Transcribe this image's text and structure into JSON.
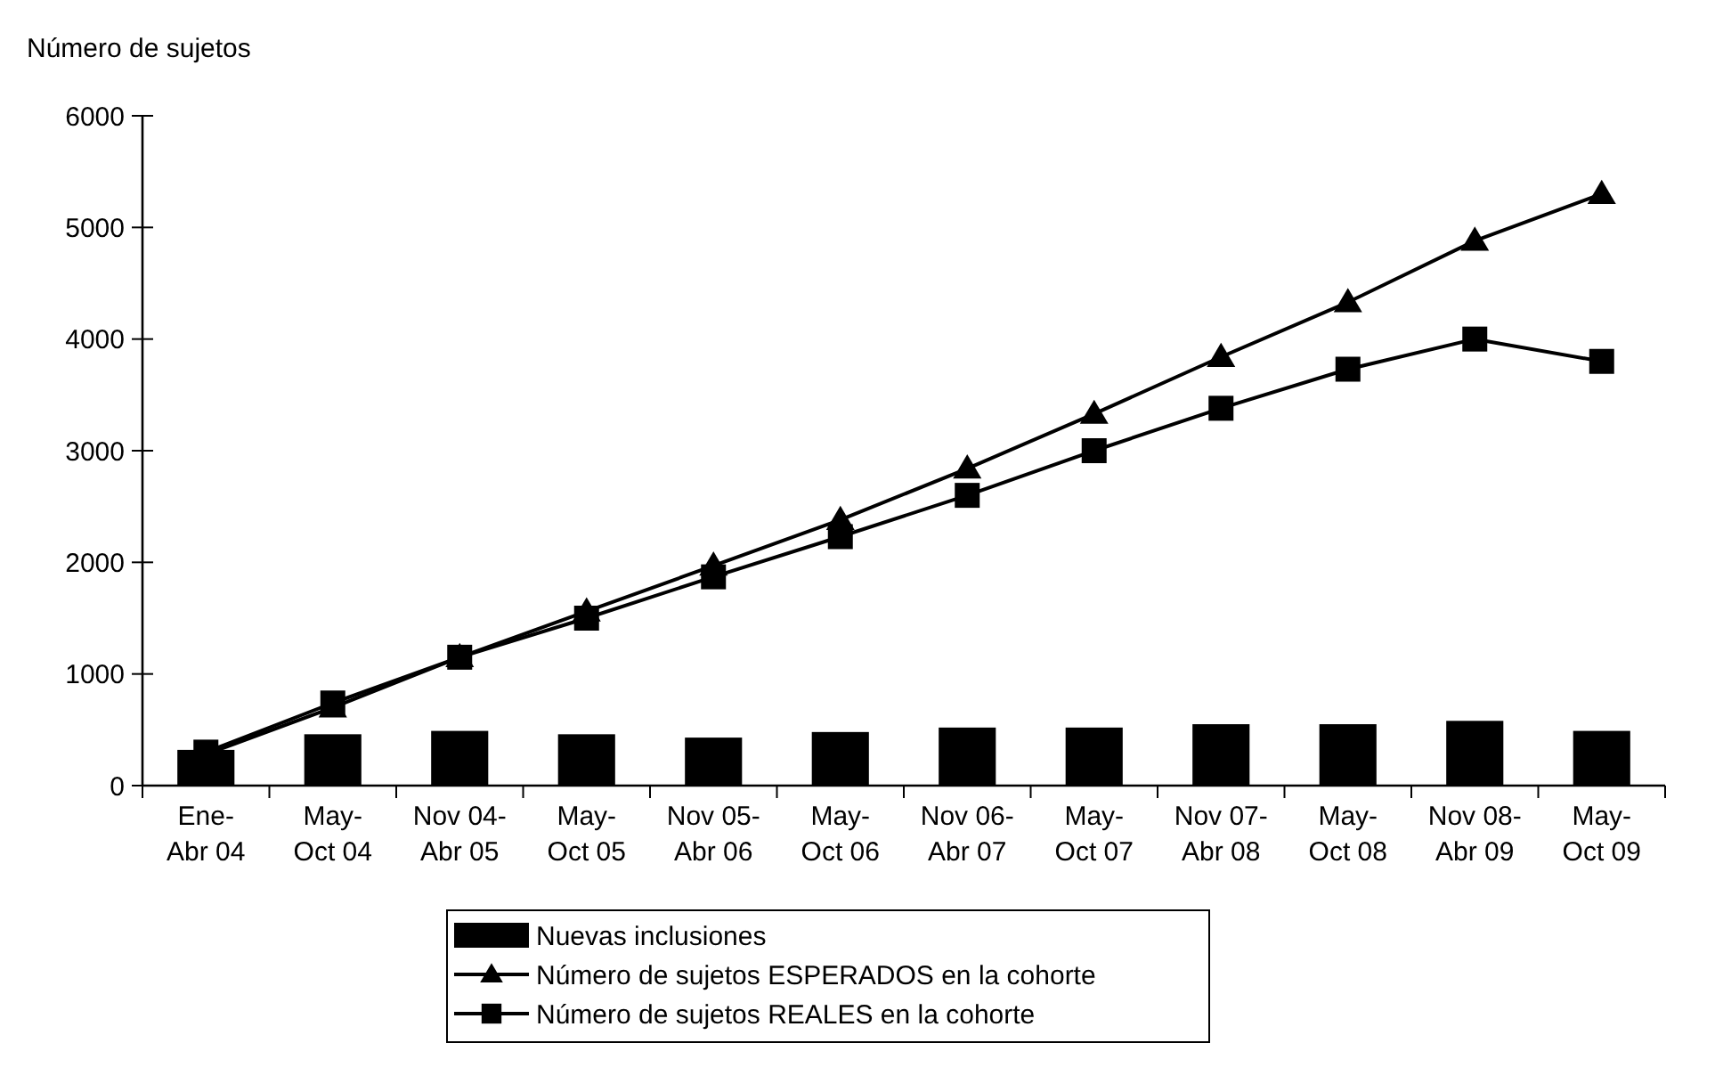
{
  "chart_data": {
    "type": "bar",
    "ylabel": "Número de sujetos",
    "categories": [
      "Ene-\nAbr 04",
      "May-\nOct 04",
      "Nov 04-\nAbr 05",
      "May-\nOct 05",
      "Nov 05-\nAbr 06",
      "May-\nOct 06",
      "Nov 06-\nAbr 07",
      "May-\nOct 07",
      "Nov 07-\nAbr 08",
      "May-\nOct 08",
      "Nov 08-\nAbr 09",
      "May-\nOct 09"
    ],
    "series": [
      {
        "name": "Nuevas inclusiones",
        "color": "#000000",
        "values": [
          320,
          460,
          490,
          460,
          430,
          480,
          520,
          520,
          550,
          550,
          580,
          490
        ]
      },
      {
        "name": "Número de sujetos ESPERADOS en la cohorte",
        "type": "line",
        "marker": "triangle",
        "color": "#000000",
        "values": [
          280,
          700,
          1150,
          1560,
          1970,
          2380,
          2840,
          3330,
          3840,
          4330,
          4880,
          5300
        ]
      },
      {
        "name": "Número de sujetos REALES en la cohorte",
        "type": "line",
        "marker": "square",
        "color": "#000000",
        "values": [
          300,
          740,
          1150,
          1500,
          1870,
          2230,
          2600,
          3000,
          3380,
          3730,
          4000,
          3800
        ]
      }
    ],
    "ylim": [
      0,
      6000
    ],
    "yticks": [
      0,
      1000,
      2000,
      3000,
      4000,
      5000,
      6000
    ],
    "grid": false,
    "legend": "bottom"
  }
}
